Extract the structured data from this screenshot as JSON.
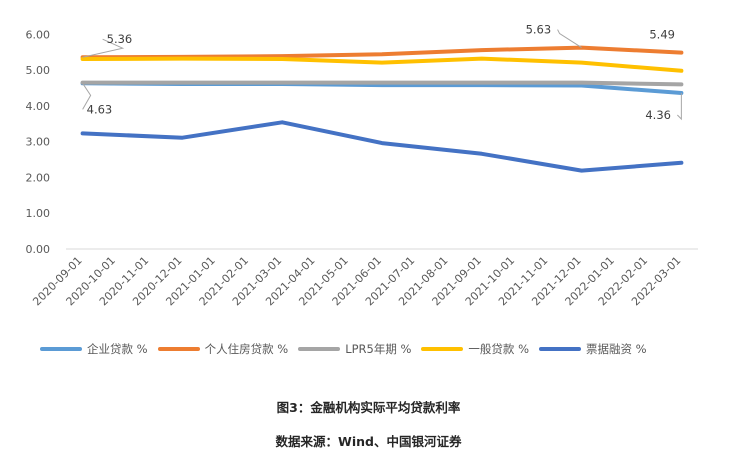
{
  "chart_data": {
    "type": "line",
    "categories": [
      "2020-09-01",
      "2020-10-01",
      "2020-11-01",
      "2020-12-01",
      "2021-01-01",
      "2021-02-01",
      "2021-03-01",
      "2021-04-01",
      "2021-05-01",
      "2021-06-01",
      "2021-07-01",
      "2021-08-01",
      "2021-09-01",
      "2021-10-01",
      "2021-11-01",
      "2021-12-01",
      "2022-01-01",
      "2022-02-01",
      "2022-03-01"
    ],
    "y_ticks": [
      "0.00",
      "1.00",
      "2.00",
      "3.00",
      "4.00",
      "5.00",
      "6.00"
    ],
    "ylim": [
      0,
      6.4
    ],
    "grid": false,
    "legend_position": "bottom",
    "series": [
      {
        "name": "企业贷款 %",
        "color": "#5B9BD5",
        "x": [
          "2020-09-01",
          "2020-12-01",
          "2021-03-01",
          "2021-06-01",
          "2021-09-01",
          "2021-12-01",
          "2022-03-01"
        ],
        "values": [
          4.63,
          4.61,
          4.61,
          4.58,
          4.58,
          4.57,
          4.36
        ]
      },
      {
        "name": "个人住房贷款 %",
        "color": "#ED7D31",
        "x": [
          "2020-09-01",
          "2020-12-01",
          "2021-03-01",
          "2021-06-01",
          "2021-09-01",
          "2021-12-01",
          "2022-03-01"
        ],
        "values": [
          5.36,
          5.37,
          5.39,
          5.44,
          5.56,
          5.63,
          5.49
        ]
      },
      {
        "name": "LPR5年期 %",
        "color": "#A5A5A5",
        "x": [
          "2020-09-01",
          "2020-12-01",
          "2021-03-01",
          "2021-06-01",
          "2021-09-01",
          "2021-12-01",
          "2022-03-01"
        ],
        "values": [
          4.65,
          4.65,
          4.65,
          4.65,
          4.65,
          4.65,
          4.6
        ]
      },
      {
        "name": "一般贷款 %",
        "color": "#FFC000",
        "x": [
          "2020-09-01",
          "2020-12-01",
          "2021-03-01",
          "2021-06-01",
          "2021-09-01",
          "2021-12-01",
          "2022-03-01"
        ],
        "values": [
          5.31,
          5.32,
          5.31,
          5.21,
          5.32,
          5.21,
          4.98
        ]
      },
      {
        "name": "票据融资 %",
        "color": "#4472C4",
        "x": [
          "2020-09-01",
          "2020-12-01",
          "2021-03-01",
          "2021-06-01",
          "2021-09-01",
          "2021-12-01",
          "2022-03-01"
        ],
        "values": [
          3.23,
          3.11,
          3.54,
          2.96,
          2.66,
          2.19,
          2.41
        ]
      }
    ],
    "annotations": [
      {
        "text": "5.36",
        "series": 1,
        "x": "2020-09-01"
      },
      {
        "text": "4.63",
        "series": 0,
        "x": "2020-09-01"
      },
      {
        "text": "5.63",
        "series": 1,
        "x": "2021-12-01"
      },
      {
        "text": "5.49",
        "series": 1,
        "x": "2022-03-01"
      },
      {
        "text": "4.36",
        "series": 0,
        "x": "2022-03-01"
      }
    ]
  },
  "caption": {
    "title": "图3：金融机构实际平均贷款利率",
    "source": "数据来源：Wind、中国银河证券"
  }
}
